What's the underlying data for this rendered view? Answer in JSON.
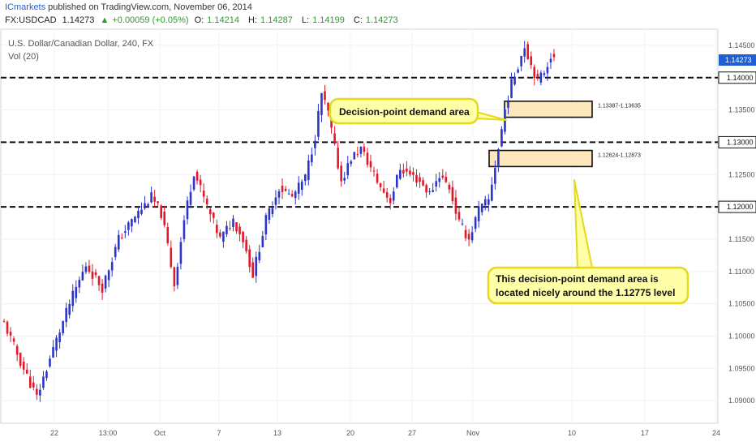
{
  "header": {
    "brand": "ICmarkets",
    "published": " published on TradingView.com, November 06, 2014",
    "symbol": "FX:USDCAD",
    "last": "1.14273",
    "change": "+0.00059 (+0.05%)",
    "open_label": "O:",
    "open": "1.14214",
    "high_label": "H:",
    "high": "1.14287",
    "low_label": "L:",
    "low": "1.14199",
    "close_label": "C:",
    "close": "1.14273"
  },
  "legend": {
    "instrument": "U.S. Dollar/Canadian Dollar, 240, FX",
    "volume": "Vol (20)"
  },
  "chart_data": {
    "type": "candlestick",
    "y_ticks": [
      "1.14500",
      "1.14000",
      "1.13500",
      "1.13000",
      "1.12500",
      "1.12000",
      "1.11500",
      "1.11000",
      "1.10500",
      "1.10000",
      "1.09500",
      "1.09000"
    ],
    "ylim": [
      1.0865,
      1.1475
    ],
    "x_ticks": [
      "22",
      "13:00",
      "Oct",
      "7",
      "13",
      "20",
      "27",
      "Nov",
      "10",
      "17",
      "24"
    ],
    "last_price_label": "1.14273",
    "levels": [
      {
        "price": 1.14,
        "label": "1.14000"
      },
      {
        "price": 1.13,
        "label": "1.13000"
      },
      {
        "price": 1.12,
        "label": "1.12000"
      }
    ],
    "zones": [
      {
        "low": 1.13387,
        "high": 1.13635,
        "label": "1.13387-1.13635"
      },
      {
        "low": 1.12624,
        "high": 1.12873,
        "label": "1.12624-1.12873"
      }
    ],
    "annotations": [
      {
        "text": "Decision-point demand area"
      },
      {
        "text": "This decision-point demand area is",
        "text2": "located nicely around the 1.12775 level"
      }
    ],
    "path": [
      [
        0,
        1.102
      ],
      [
        5,
        1.096
      ],
      [
        10,
        1.0905
      ],
      [
        15,
        1.098
      ],
      [
        20,
        1.105
      ],
      [
        25,
        1.111
      ],
      [
        30,
        1.1075
      ],
      [
        35,
        1.115
      ],
      [
        40,
        1.1185
      ],
      [
        45,
        1.1215
      ],
      [
        48,
        1.119
      ],
      [
        50,
        1.114
      ],
      [
        52,
        1.108
      ],
      [
        55,
        1.118
      ],
      [
        58,
        1.1255
      ],
      [
        62,
        1.12
      ],
      [
        66,
        1.115
      ],
      [
        70,
        1.118
      ],
      [
        73,
        1.115
      ],
      [
        76,
        1.1095
      ],
      [
        80,
        1.118
      ],
      [
        84,
        1.123
      ],
      [
        88,
        1.1215
      ],
      [
        92,
        1.1245
      ],
      [
        95,
        1.131
      ],
      [
        97,
        1.1375
      ],
      [
        99,
        1.1345
      ],
      [
        101,
        1.129
      ],
      [
        103,
        1.124
      ],
      [
        106,
        1.1275
      ],
      [
        109,
        1.129
      ],
      [
        112,
        1.126
      ],
      [
        115,
        1.123
      ],
      [
        118,
        1.121
      ],
      [
        121,
        1.126
      ],
      [
        124,
        1.125
      ],
      [
        127,
        1.124
      ],
      [
        130,
        1.122
      ],
      [
        133,
        1.125
      ],
      [
        136,
        1.123
      ],
      [
        139,
        1.1175
      ],
      [
        142,
        1.115
      ],
      [
        145,
        1.1195
      ],
      [
        148,
        1.121
      ],
      [
        151,
        1.129
      ],
      [
        153,
        1.135
      ],
      [
        155,
        1.139
      ],
      [
        157,
        1.142
      ],
      [
        159,
        1.145
      ],
      [
        161,
        1.142
      ],
      [
        163,
        1.1395
      ],
      [
        165,
        1.141
      ],
      [
        167,
        1.1435
      ],
      [
        168,
        1.1427
      ]
    ]
  }
}
